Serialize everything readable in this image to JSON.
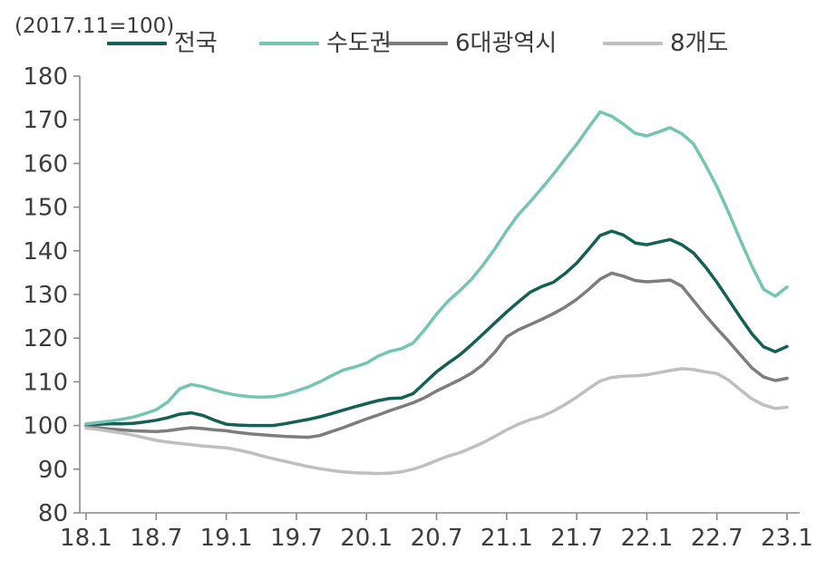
{
  "note": "(2017.11=100)",
  "axis": {
    "line_color": "#8c8c8c",
    "tick_label_color": "#3d3d3d"
  },
  "chart_data": {
    "type": "line",
    "title": "",
    "xlabel": "",
    "ylabel": "",
    "index_base_note": "(2017.11=100)",
    "x_unit": "year.month (monthly points, 2018.1 to 2023.1)",
    "x_tick_labels": [
      "18.1",
      "18.7",
      "19.1",
      "19.7",
      "20.1",
      "20.7",
      "21.1",
      "21.7",
      "22.1",
      "22.7",
      "23.1"
    ],
    "x_tick_every_n_points": 6,
    "ylim": [
      80,
      180
    ],
    "y_ticks": [
      80,
      90,
      100,
      110,
      120,
      130,
      140,
      150,
      160,
      170,
      180
    ],
    "grid": false,
    "legend_position": "top",
    "series": [
      {
        "key": "national",
        "name": "전국",
        "color": "#156055",
        "values": [
          100.2,
          100.3,
          100.4,
          100.4,
          100.5,
          100.8,
          101.2,
          101.8,
          102.6,
          102.9,
          102.3,
          101.2,
          100.3,
          100.1,
          100.0,
          100.0,
          100.0,
          100.4,
          100.9,
          101.4,
          102.0,
          102.7,
          103.5,
          104.3,
          105.0,
          105.7,
          106.2,
          106.3,
          107.3,
          109.8,
          112.3,
          114.3,
          116.2,
          118.5,
          121.0,
          123.5,
          126.0,
          128.3,
          130.5,
          131.8,
          132.8,
          134.8,
          137.2,
          140.3,
          143.5,
          144.5,
          143.6,
          141.8,
          141.4,
          142.0,
          142.6,
          141.4,
          139.5,
          136.4,
          132.8,
          128.8,
          124.8,
          121.0,
          118.0,
          116.9,
          118.1
        ]
      },
      {
        "key": "seoul-metro-area",
        "name": "수도권",
        "color": "#74c5b1",
        "values": [
          100.4,
          100.7,
          101.0,
          101.4,
          101.9,
          102.7,
          103.6,
          105.4,
          108.4,
          109.4,
          108.9,
          108.1,
          107.4,
          106.9,
          106.6,
          106.5,
          106.6,
          107.1,
          107.9,
          108.8,
          110.0,
          111.4,
          112.7,
          113.4,
          114.3,
          115.9,
          117.0,
          117.6,
          118.9,
          122.0,
          125.5,
          128.5,
          130.9,
          133.5,
          136.8,
          140.5,
          144.6,
          148.3,
          151.2,
          154.3,
          157.5,
          161.0,
          164.4,
          168.2,
          171.8,
          170.8,
          169.0,
          166.9,
          166.3,
          167.2,
          168.2,
          166.8,
          164.5,
          159.8,
          154.7,
          148.8,
          142.5,
          136.5,
          131.2,
          129.6,
          131.7
        ]
      },
      {
        "key": "six-metro-cities",
        "name": "6대광역시",
        "color": "#7d7d7d",
        "values": [
          99.7,
          99.5,
          99.2,
          99.0,
          98.8,
          98.7,
          98.6,
          98.8,
          99.2,
          99.5,
          99.3,
          99.0,
          98.8,
          98.4,
          98.1,
          97.9,
          97.7,
          97.5,
          97.4,
          97.3,
          97.7,
          98.6,
          99.5,
          100.5,
          101.5,
          102.4,
          103.4,
          104.3,
          105.2,
          106.4,
          107.9,
          109.2,
          110.5,
          112.0,
          114.0,
          116.8,
          120.3,
          121.9,
          123.1,
          124.3,
          125.6,
          127.1,
          128.9,
          131.1,
          133.5,
          134.9,
          134.2,
          133.2,
          132.9,
          133.1,
          133.3,
          131.9,
          128.6,
          125.3,
          122.2,
          119.3,
          116.2,
          113.2,
          111.1,
          110.3,
          110.8
        ]
      },
      {
        "key": "eight-provinces",
        "name": "8개도",
        "color": "#bfbfbf",
        "values": [
          99.4,
          99.1,
          98.7,
          98.3,
          97.8,
          97.2,
          96.6,
          96.2,
          95.9,
          95.6,
          95.3,
          95.1,
          94.9,
          94.4,
          93.8,
          93.1,
          92.4,
          91.8,
          91.2,
          90.6,
          90.1,
          89.7,
          89.4,
          89.2,
          89.1,
          89.0,
          89.1,
          89.4,
          90.0,
          90.9,
          92.0,
          93.0,
          93.8,
          94.9,
          96.1,
          97.5,
          99.0,
          100.3,
          101.3,
          102.1,
          103.3,
          104.8,
          106.5,
          108.4,
          110.2,
          111.0,
          111.3,
          111.4,
          111.6,
          112.1,
          112.6,
          113.0,
          112.8,
          112.3,
          111.9,
          110.4,
          108.2,
          106.1,
          104.7,
          103.9,
          104.2
        ]
      }
    ]
  }
}
